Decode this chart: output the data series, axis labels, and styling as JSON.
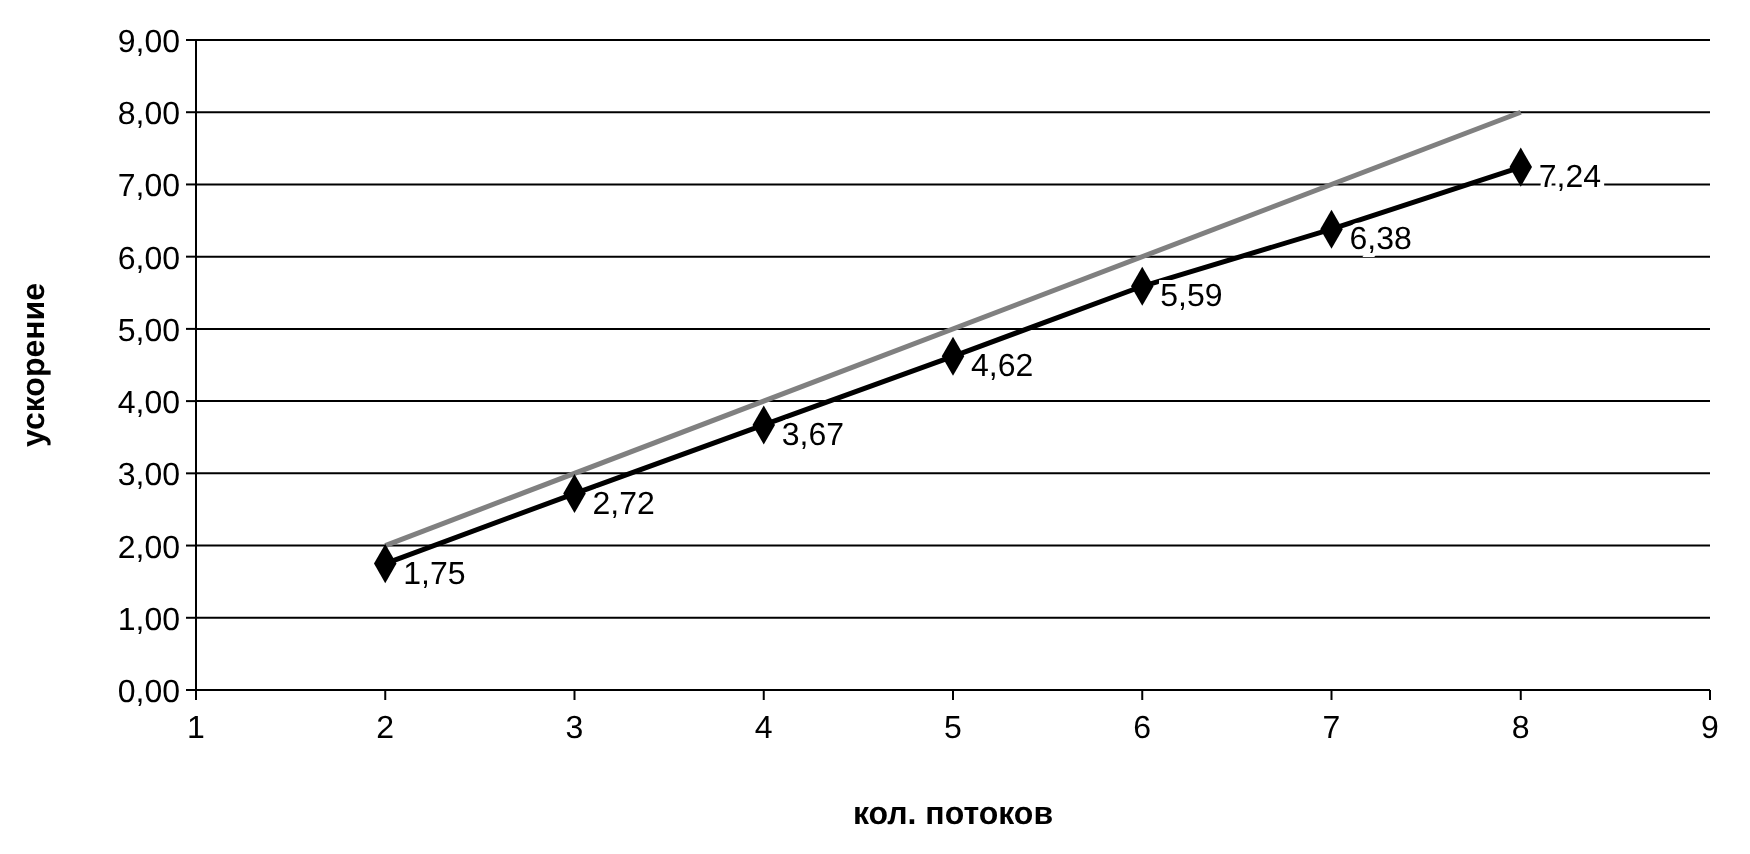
{
  "chart_data": {
    "type": "line",
    "xlabel": "кол. потоков",
    "ylabel": "ускорение",
    "x": [
      2,
      3,
      4,
      5,
      6,
      7,
      8
    ],
    "series": [
      {
        "color": "#808080",
        "x": [
          2,
          8
        ],
        "values": [
          2,
          8
        ],
        "marker": "none"
      },
      {
        "color": "#000000",
        "values": [
          1.75,
          2.72,
          3.67,
          4.62,
          5.59,
          6.38,
          7.24
        ],
        "marker": "diamond",
        "value_labels": [
          "1,75",
          "2,72",
          "3,67",
          "4,62",
          "5,59",
          "6,38",
          "7,24"
        ]
      }
    ],
    "xlim": [
      1,
      9
    ],
    "xticks": [
      1,
      2,
      3,
      4,
      5,
      6,
      7,
      8,
      9
    ],
    "ylim": [
      0,
      9
    ],
    "yticks": [
      {
        "value": 0,
        "label": "0,00"
      },
      {
        "value": 1,
        "label": "1,00"
      },
      {
        "value": 2,
        "label": "2,00"
      },
      {
        "value": 3,
        "label": "3,00"
      },
      {
        "value": 4,
        "label": "4,00"
      },
      {
        "value": 5,
        "label": "5,00"
      },
      {
        "value": 6,
        "label": "6,00"
      },
      {
        "value": 7,
        "label": "7,00"
      },
      {
        "value": 8,
        "label": "8,00"
      },
      {
        "value": 9,
        "label": "9,00"
      }
    ],
    "grid": "y",
    "line_style": "solid"
  }
}
